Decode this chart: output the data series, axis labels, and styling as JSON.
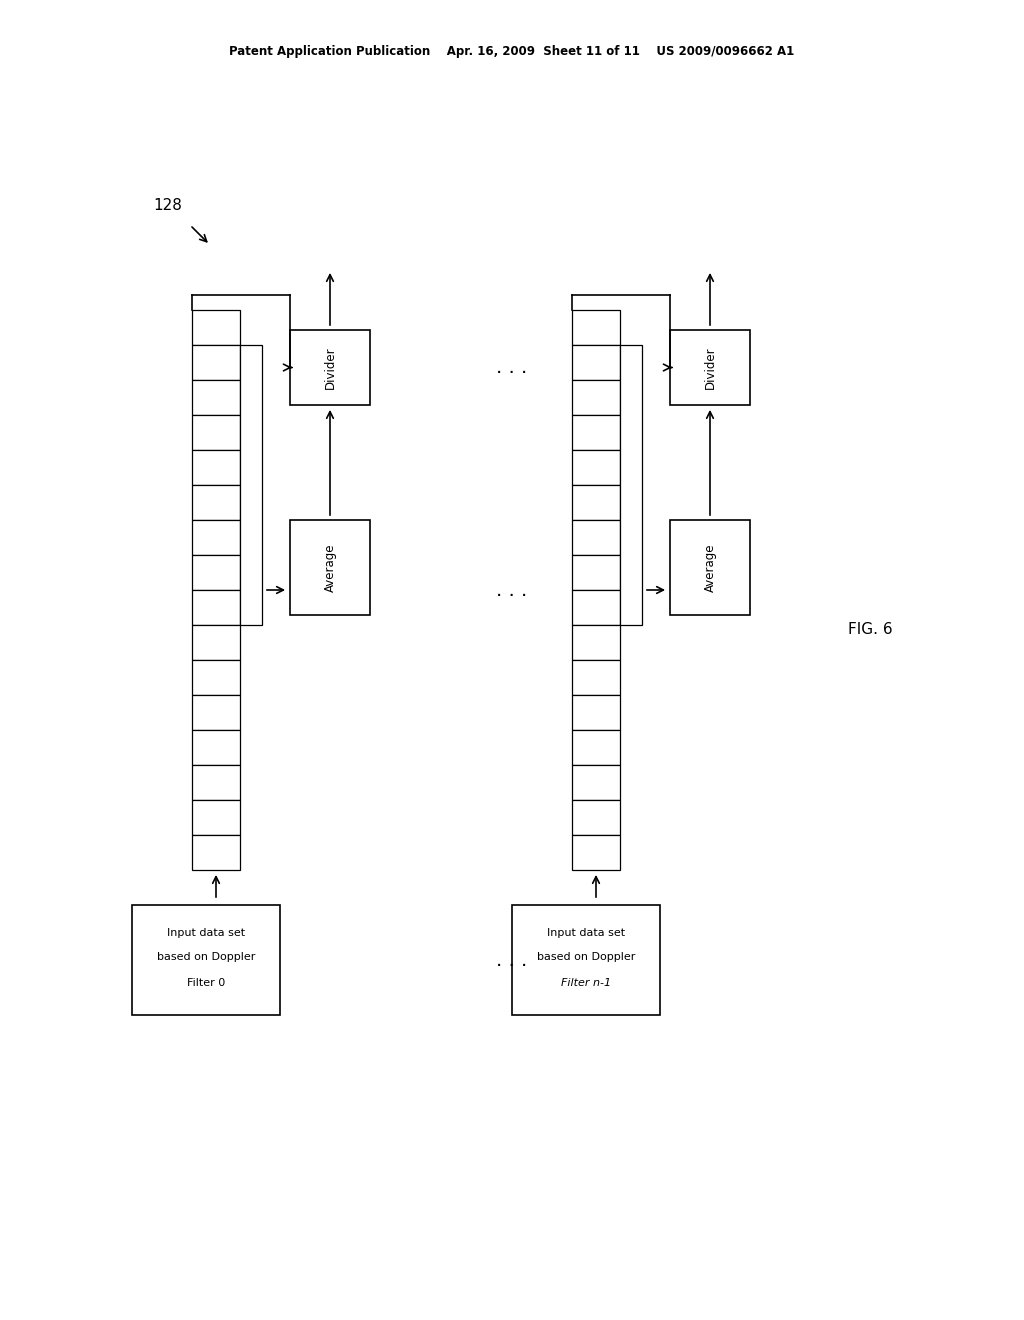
{
  "bg_color": "#ffffff",
  "header_text": "Patent Application Publication    Apr. 16, 2009  Sheet 11 of 11    US 2009/0096662 A1",
  "fig_label": "FIG. 6",
  "label_128": "128",
  "text_color": "#000000"
}
